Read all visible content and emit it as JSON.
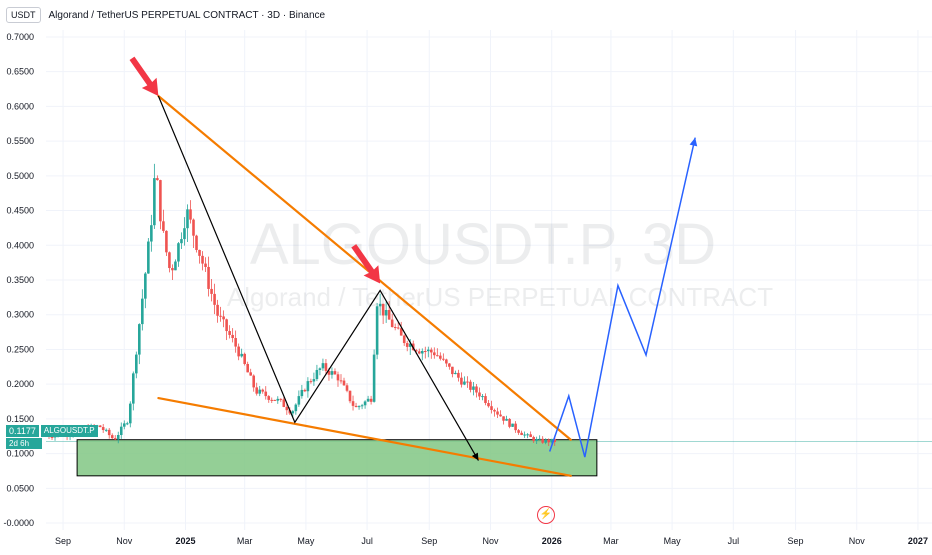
{
  "header": {
    "currency_button": "USDT",
    "title": "Algorand / TetherUS PERPETUAL CONTRACT · 3D · Binance"
  },
  "watermark": {
    "line1": "ALGOUSDT.P, 3D",
    "line2": "Algorand / TetherUS PERPETUAL CONTRACT"
  },
  "price_tag": {
    "value": "0.1177",
    "symbol": "ALGOUSDT.P",
    "countdown": "2d 6h"
  },
  "icons": {
    "flash": "flash-icon"
  },
  "colors": {
    "up": "#26a69a",
    "down": "#ef5350",
    "trendline": "#f57c00",
    "zigzag": "#000000",
    "projection": "#2962ff",
    "support_zone": "#81c784",
    "arrow": "#f23645"
  },
  "chart_data": {
    "type": "candlestick",
    "title": "Algorand / TetherUS PERPETUAL CONTRACT · 3D · Binance",
    "y_axis": {
      "position": "left",
      "ticks": [
        "0.7000",
        "0.6500",
        "0.6000",
        "0.5500",
        "0.5000",
        "0.4500",
        "0.4000",
        "0.3500",
        "0.3000",
        "0.2500",
        "0.2000",
        "0.1500",
        "0.1000",
        "0.0500",
        "-0.0000"
      ],
      "ylim": [
        -0.01,
        0.71
      ]
    },
    "x_axis": {
      "ticks": [
        "Sep",
        "Nov",
        "2025",
        "Mar",
        "May",
        "Jul",
        "Sep",
        "Nov",
        "2026",
        "Mar",
        "May",
        "Jul",
        "Sep",
        "Nov",
        "2027"
      ],
      "start": "2024-08-15",
      "end": "2027-01-15"
    },
    "current_price": 0.1177,
    "price_path": [
      [
        "2024-08-15",
        0.125
      ],
      [
        "2024-09-15",
        0.13
      ],
      [
        "2024-10-10",
        0.14
      ],
      [
        "2024-10-25",
        0.12
      ],
      [
        "2024-11-08",
        0.15
      ],
      [
        "2024-11-20",
        0.3
      ],
      [
        "2024-11-30",
        0.42
      ],
      [
        "2024-12-05",
        0.51
      ],
      [
        "2024-12-12",
        0.42
      ],
      [
        "2024-12-20",
        0.36
      ],
      [
        "2024-12-28",
        0.4
      ],
      [
        "2025-01-05",
        0.45
      ],
      [
        "2025-01-20",
        0.38
      ],
      [
        "2025-02-05",
        0.3
      ],
      [
        "2025-02-25",
        0.25
      ],
      [
        "2025-03-15",
        0.19
      ],
      [
        "2025-04-08",
        0.175
      ],
      [
        "2025-04-20",
        0.16
      ],
      [
        "2025-05-05",
        0.2
      ],
      [
        "2025-05-20",
        0.225
      ],
      [
        "2025-06-05",
        0.21
      ],
      [
        "2025-06-22",
        0.165
      ],
      [
        "2025-07-08",
        0.18
      ],
      [
        "2025-07-14",
        0.32
      ],
      [
        "2025-07-22",
        0.3
      ],
      [
        "2025-08-08",
        0.265
      ],
      [
        "2025-08-25",
        0.25
      ],
      [
        "2025-09-10",
        0.245
      ],
      [
        "2025-09-25",
        0.22
      ],
      [
        "2025-10-10",
        0.2
      ],
      [
        "2025-10-25",
        0.185
      ],
      [
        "2025-11-10",
        0.16
      ],
      [
        "2025-11-25",
        0.14
      ],
      [
        "2025-12-10",
        0.125
      ],
      [
        "2025-12-22",
        0.118
      ],
      [
        "2026-01-06",
        0.118
      ]
    ],
    "drawings": {
      "upper_trendline": [
        [
          "2024-12-05",
          0.615
        ],
        [
          "2026-01-20",
          0.12
        ]
      ],
      "lower_trendline": [
        [
          "2024-12-05",
          0.18
        ],
        [
          "2026-01-20",
          0.068
        ]
      ],
      "support_zone": {
        "from": "2024-09-15",
        "to": "2026-02-15",
        "top": 0.12,
        "bottom": 0.068
      },
      "zigzag": [
        [
          "2024-12-05",
          0.615
        ],
        [
          "2025-04-20",
          0.145
        ],
        [
          "2025-07-14",
          0.335
        ],
        [
          "2025-10-20",
          0.09
        ]
      ],
      "projection": [
        [
          "2025-12-30",
          0.103
        ],
        [
          "2026-01-18",
          0.183
        ],
        [
          "2026-02-03",
          0.095
        ],
        [
          "2026-03-08",
          0.342
        ],
        [
          "2026-04-05",
          0.242
        ],
        [
          "2026-05-24",
          0.555
        ]
      ],
      "arrows": [
        [
          "2024-12-05",
          0.615
        ],
        [
          "2025-07-14",
          0.345
        ]
      ]
    }
  }
}
